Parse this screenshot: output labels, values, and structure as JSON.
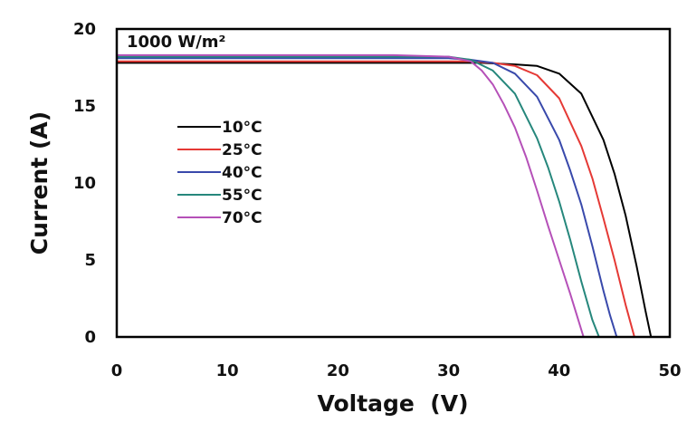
{
  "chart_data": {
    "type": "line",
    "title": "",
    "annotation": "1000 W/m²",
    "xlabel": "Voltage  (V)",
    "ylabel": "Current (A)",
    "xlim": [
      0,
      50
    ],
    "ylim": [
      0,
      20
    ],
    "xticks": [
      0,
      10,
      20,
      30,
      40,
      50
    ],
    "yticks": [
      0,
      5,
      10,
      15,
      20
    ],
    "grid": false,
    "legend_position": "left",
    "series": [
      {
        "name": "10°C",
        "color": "#000000",
        "x": [
          0,
          10,
          20,
          30,
          33,
          36,
          38,
          40,
          42,
          44,
          45,
          46,
          47,
          47.8,
          48.3
        ],
        "y": [
          17.8,
          17.8,
          17.8,
          17.8,
          17.8,
          17.7,
          17.6,
          17.1,
          15.8,
          12.8,
          10.6,
          7.9,
          4.6,
          1.7,
          0
        ]
      },
      {
        "name": "25°C",
        "color": "#e53935",
        "x": [
          0,
          10,
          20,
          30,
          32,
          34,
          36,
          38,
          40,
          42,
          43,
          44,
          45,
          46,
          46.8
        ],
        "y": [
          17.9,
          17.9,
          17.9,
          17.9,
          17.9,
          17.8,
          17.6,
          17.0,
          15.5,
          12.4,
          10.3,
          7.7,
          5.0,
          2.1,
          0
        ]
      },
      {
        "name": "40°C",
        "color": "#3949ab",
        "x": [
          0,
          10,
          20,
          30,
          32,
          34,
          36,
          38,
          40,
          41,
          42,
          43,
          44,
          44.6,
          45.2
        ],
        "y": [
          18.1,
          18.1,
          18.1,
          18.1,
          18.0,
          17.8,
          17.1,
          15.6,
          12.8,
          10.8,
          8.6,
          5.9,
          3.0,
          1.4,
          0
        ]
      },
      {
        "name": "55°C",
        "color": "#26877c",
        "x": [
          0,
          10,
          20,
          30,
          32,
          34,
          36,
          38,
          39,
          40,
          41,
          42,
          43,
          43.6
        ],
        "y": [
          18.2,
          18.2,
          18.2,
          18.2,
          18.0,
          17.3,
          15.8,
          12.9,
          11.0,
          8.8,
          6.3,
          3.6,
          1.1,
          0
        ]
      },
      {
        "name": "70°C",
        "color": "#b550b8",
        "x": [
          0,
          10,
          20,
          25,
          30,
          32,
          33,
          34,
          35,
          36,
          37,
          38,
          39,
          40,
          41,
          42.2
        ],
        "y": [
          18.3,
          18.3,
          18.3,
          18.3,
          18.2,
          17.9,
          17.3,
          16.4,
          15.1,
          13.6,
          11.7,
          9.5,
          7.2,
          5.0,
          2.8,
          0
        ]
      }
    ]
  }
}
